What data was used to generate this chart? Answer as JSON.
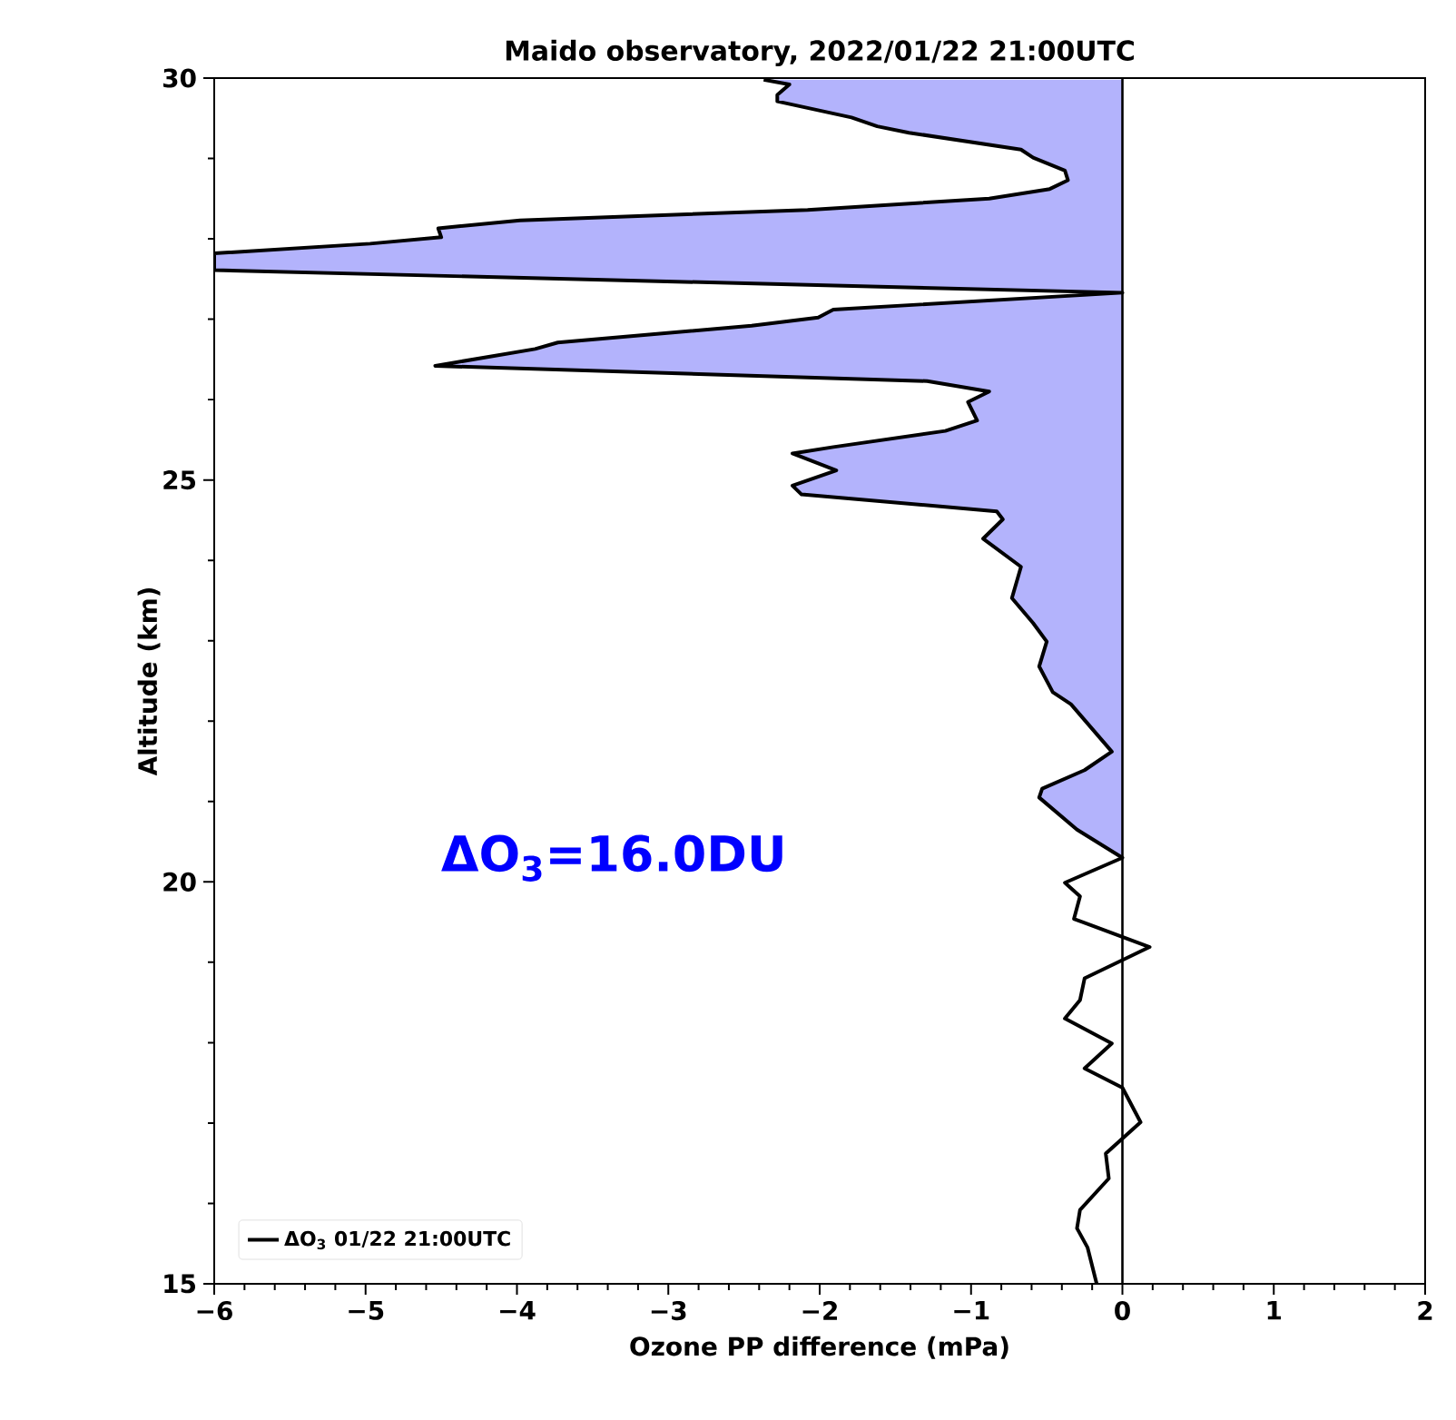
{
  "chart_data": {
    "type": "line",
    "title": "Maido observatory, 2022/01/22 21:00UTC",
    "xlabel": "Ozone PP difference (mPa)",
    "ylabel": "Altitude (km)",
    "orientation": "horizontal",
    "xlim": [
      -6,
      2
    ],
    "ylim": [
      15,
      30
    ],
    "xticks": [
      {
        "value": -6,
        "label": "−6"
      },
      {
        "value": -5,
        "label": "−5"
      },
      {
        "value": -4,
        "label": "−4"
      },
      {
        "value": -3,
        "label": "−3"
      },
      {
        "value": -2,
        "label": "−2"
      },
      {
        "value": -1,
        "label": "−1"
      },
      0,
      1,
      2
    ],
    "yticks": [
      15,
      20,
      25,
      30
    ],
    "legend": "bottom left",
    "annotations": [
      "ΔO$_{3}$=16.0DU"
    ],
    "ref_lines": [
      {
        "axis": "x",
        "value": 0,
        "color": "#000000"
      }
    ],
    "series": [
      {
        "type": "area",
        "color": "#b3b3fc",
        "x": [
          29.98,
          29.92,
          29.79,
          29.71,
          29.51,
          29.4,
          29.32,
          29.11,
          29.01,
          28.85,
          28.73,
          28.62,
          28.5,
          28.36,
          28.23,
          28.13,
          28.02,
          27.94,
          27.82,
          27.61,
          27.33,
          27.12,
          27.02,
          26.92,
          26.71,
          26.63,
          26.42,
          26.23,
          26.1,
          25.97,
          25.74,
          25.61,
          25.41,
          25.33,
          25.12,
          24.93,
          24.82,
          24.61,
          24.51,
          24.27,
          23.92,
          23.53,
          23.22,
          22.99,
          22.68,
          22.36,
          22.21,
          21.62,
          21.39,
          21.16,
          21.05,
          20.65,
          20.3
        ],
        "values": [
          -2.37,
          -2.2,
          -2.28,
          -2.28,
          -1.79,
          -1.62,
          -1.41,
          -0.67,
          -0.59,
          -0.38,
          -0.36,
          -0.48,
          -0.88,
          -2.08,
          -3.98,
          -4.52,
          -4.5,
          -4.97,
          -6,
          -6,
          0,
          -1.91,
          -2.01,
          -2.45,
          -3.73,
          -3.88,
          -4.54,
          -1.29,
          -0.88,
          -1.02,
          -0.96,
          -1.17,
          -1.91,
          -2.18,
          -1.89,
          -2.18,
          -2.12,
          -0.83,
          -0.79,
          -0.92,
          -0.67,
          -0.73,
          -0.59,
          -0.5,
          -0.55,
          -0.46,
          -0.34,
          -0.07,
          -0.25,
          -0.53,
          -0.55,
          -0.3,
          0
        ]
      },
      {
        "name": "ΔO$_{3}$ 01/22 21:00UTC",
        "color": "#000000",
        "x": [
          29.98,
          29.92,
          29.79,
          29.71,
          29.51,
          29.4,
          29.32,
          29.11,
          29.01,
          28.85,
          28.73,
          28.62,
          28.5,
          28.36,
          28.23,
          28.13,
          28.02,
          27.94,
          27.82,
          27.61,
          27.33,
          27.12,
          27.02,
          26.92,
          26.71,
          26.63,
          26.42,
          26.23,
          26.1,
          25.97,
          25.74,
          25.61,
          25.41,
          25.33,
          25.12,
          24.93,
          24.82,
          24.61,
          24.51,
          24.27,
          23.92,
          23.53,
          23.22,
          22.99,
          22.68,
          22.36,
          22.21,
          21.62,
          21.39,
          21.16,
          21.05,
          20.65,
          20.3,
          19.99,
          19.82,
          19.54,
          19.19,
          18.8,
          18.53,
          18.3,
          17.99,
          17.68,
          17.44,
          17.01,
          16.62,
          16.31,
          15.92,
          15.69,
          15.45,
          15.0
        ],
        "values": [
          -2.37,
          -2.2,
          -2.28,
          -2.28,
          -1.79,
          -1.62,
          -1.41,
          -0.67,
          -0.59,
          -0.38,
          -0.36,
          -0.48,
          -0.88,
          -2.08,
          -3.98,
          -4.52,
          -4.5,
          -4.97,
          -6,
          -6,
          0,
          -1.91,
          -2.01,
          -2.45,
          -3.73,
          -3.88,
          -4.54,
          -1.29,
          -0.88,
          -1.02,
          -0.96,
          -1.17,
          -1.91,
          -2.18,
          -1.89,
          -2.18,
          -2.12,
          -0.83,
          -0.79,
          -0.92,
          -0.67,
          -0.73,
          -0.59,
          -0.5,
          -0.55,
          -0.46,
          -0.34,
          -0.07,
          -0.25,
          -0.53,
          -0.55,
          -0.3,
          0,
          -0.38,
          -0.28,
          -0.32,
          0.18,
          -0.25,
          -0.28,
          -0.38,
          -0.07,
          -0.25,
          0,
          0.12,
          -0.11,
          -0.09,
          -0.28,
          -0.3,
          -0.23,
          -0.17
        ]
      }
    ]
  }
}
